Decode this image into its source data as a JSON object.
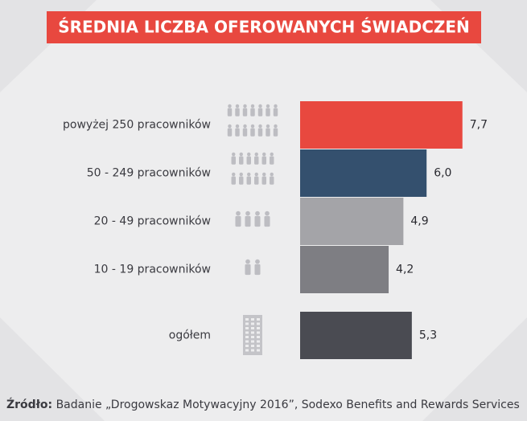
{
  "chart_data": {
    "type": "bar",
    "orientation": "horizontal",
    "title": "ŚREDNIA LICZBA OFEROWANYCH ŚWIADCZEŃ",
    "categories": [
      "powyżej 250 pracowników",
      "50 - 249 pracowników",
      "20 - 49 pracowników",
      "10 - 19 pracowników",
      "ogółem"
    ],
    "values": [
      7.7,
      6.0,
      4.9,
      4.2,
      5.3
    ],
    "value_labels": [
      "7,7",
      "6,0",
      "4,9",
      "4,2",
      "5,3"
    ],
    "colors": [
      "#e8483f",
      "#34506e",
      "#a4a4a8",
      "#7e7e83",
      "#4a4b52"
    ],
    "source_label": "Źródło:",
    "source": "Badanie „Drogowskaz Motywacyjny 2016”, Sodexo Benefits and Rewards Services"
  }
}
